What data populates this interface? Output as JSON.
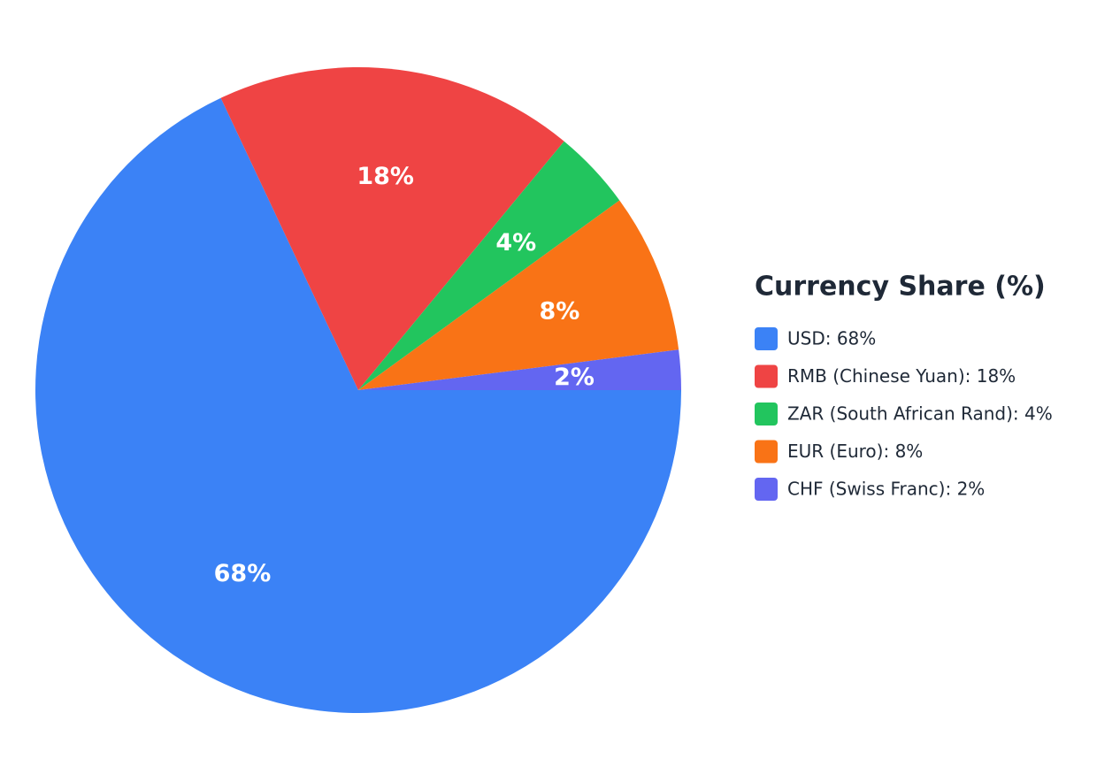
{
  "chart_data": {
    "type": "pie",
    "legend_title": "Currency Share (%)",
    "categories": [
      "USD: 68%",
      "RMB (Chinese Yuan): 18%",
      "ZAR (South African Rand): 4%",
      "EUR (Euro): 8%",
      "CHF (Swiss Franc): 2%"
    ],
    "values": [
      68,
      18,
      4,
      8,
      2
    ],
    "value_labels": [
      "68%",
      "18%",
      "4%",
      "8%",
      "2%"
    ],
    "colors": [
      "#3b82f6",
      "#ef4444",
      "#22c55e",
      "#f97316",
      "#6366f1"
    ],
    "legend": "right"
  }
}
